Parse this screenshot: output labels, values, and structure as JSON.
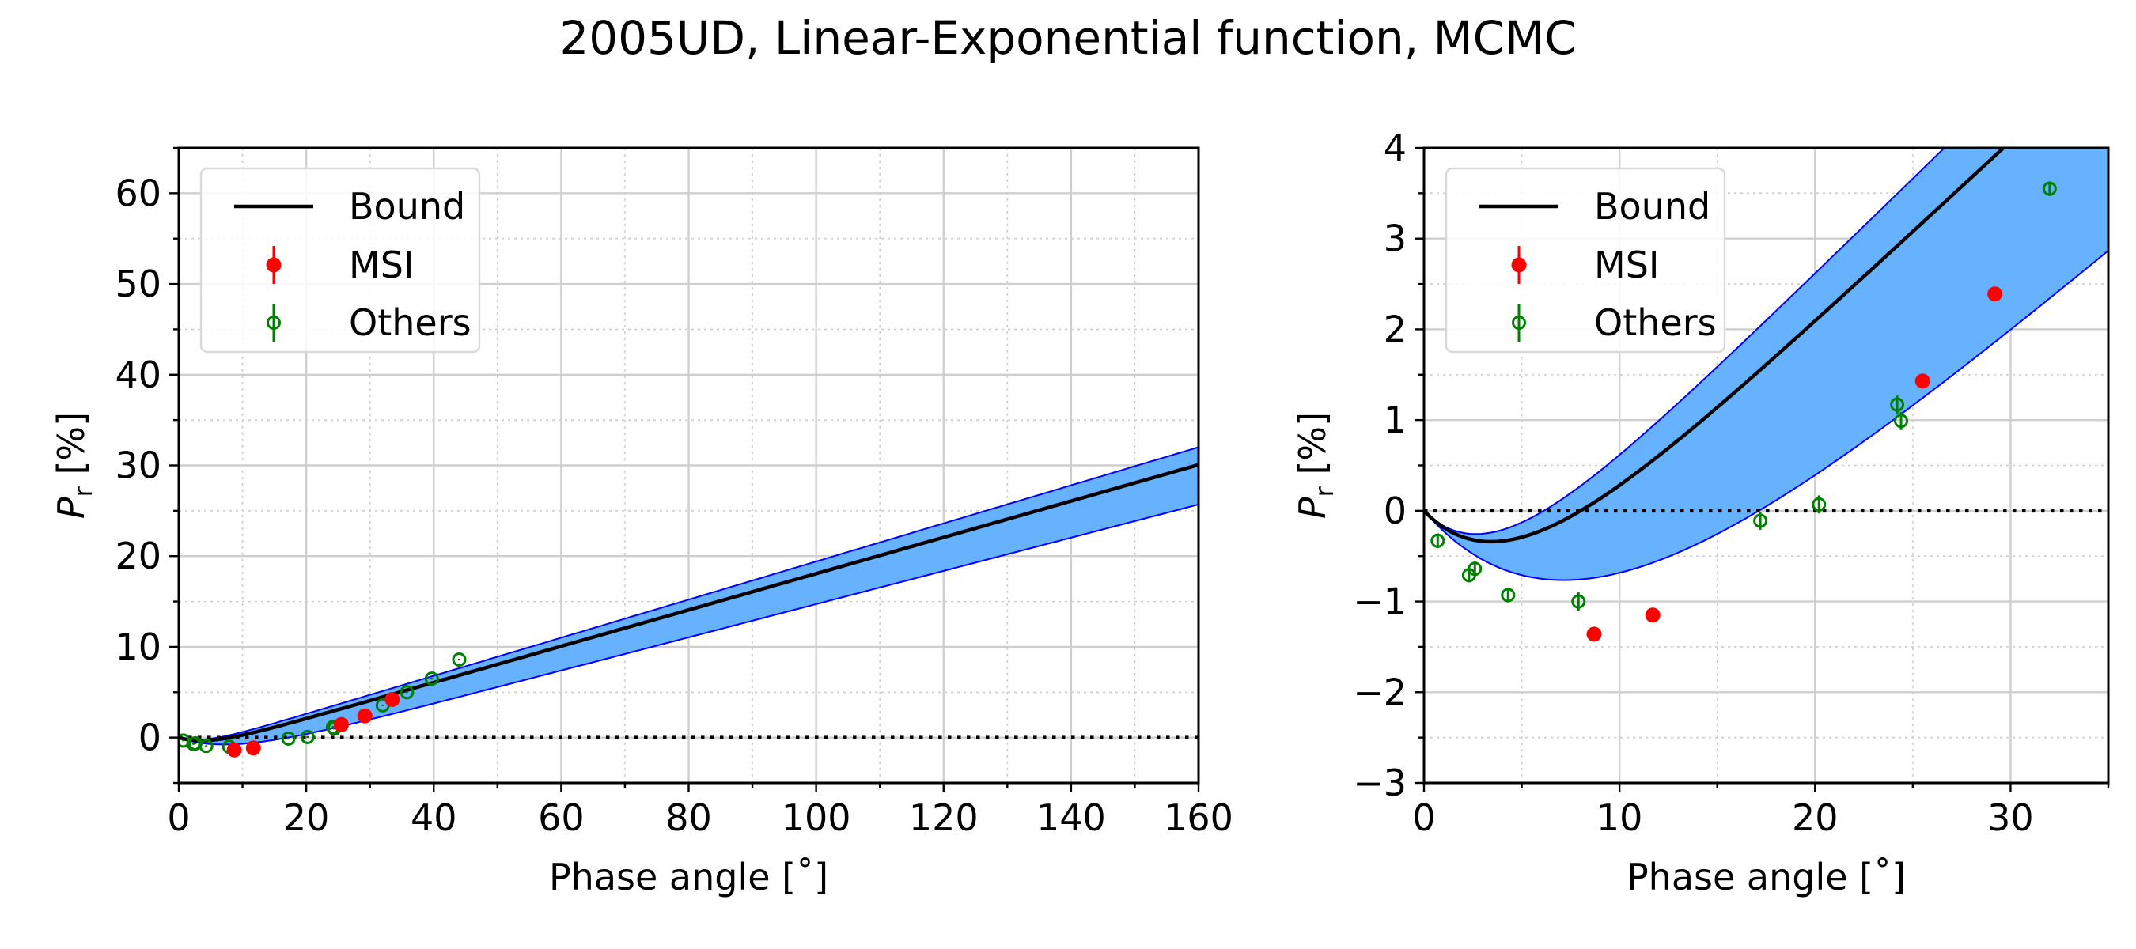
{
  "figure": {
    "title": "2005UD, Linear-Exponential function, MCMC"
  },
  "colors": {
    "band_fill": "#66b2ff",
    "band_edge": "#0000ff",
    "model_line": "#000000",
    "msi": "#ff0000",
    "others": "#008000",
    "zero_line": "#000000"
  },
  "chart_data": [
    {
      "type": "line",
      "title": "",
      "xlabel": "Phase angle [˚]",
      "ylabel": "P_r [%]",
      "ylabel_main": "P",
      "ylabel_sub": "r",
      "ylabel_unit": "[%]",
      "xlim": [
        0,
        160
      ],
      "ylim": [
        -5,
        65
      ],
      "xticks": [
        0,
        20,
        40,
        60,
        80,
        100,
        120,
        140,
        160
      ],
      "yticks": [
        0,
        10,
        20,
        30,
        40,
        50,
        60
      ],
      "x_minor_step": 10,
      "y_minor_step": 5,
      "grid": true,
      "legend_position": "upper-left",
      "legend": [
        "Bound",
        "MSI",
        "Others"
      ],
      "model": {
        "h": 0.2,
        "a": 1.93,
        "k": 4.52
      },
      "band_low": {
        "h": 0.183,
        "a": 3.59,
        "k": 8.3
      },
      "band_high": {
        "h": 0.21,
        "a": 1.59,
        "k": 3.7
      },
      "zero_line": 0,
      "msi": [
        {
          "x": 8.7,
          "y": -1.36,
          "err": 0.08
        },
        {
          "x": 11.7,
          "y": -1.15,
          "err": 0.08
        },
        {
          "x": 25.5,
          "y": 1.43,
          "err": 0.08
        },
        {
          "x": 29.2,
          "y": 2.39,
          "err": 0.08
        },
        {
          "x": 33.5,
          "y": 4.2,
          "err": 0.1
        }
      ],
      "others": [
        {
          "x": 0.7,
          "y": -0.33,
          "err": 0.08
        },
        {
          "x": 2.3,
          "y": -0.71,
          "err": 0.08
        },
        {
          "x": 2.6,
          "y": -0.64,
          "err": 0.08
        },
        {
          "x": 4.3,
          "y": -0.93,
          "err": 0.08
        },
        {
          "x": 7.9,
          "y": -1.0,
          "err": 0.1
        },
        {
          "x": 17.2,
          "y": -0.11,
          "err": 0.1
        },
        {
          "x": 20.2,
          "y": 0.07,
          "err": 0.1
        },
        {
          "x": 24.2,
          "y": 1.17,
          "err": 0.1
        },
        {
          "x": 24.4,
          "y": 0.99,
          "err": 0.1
        },
        {
          "x": 32.0,
          "y": 3.55,
          "err": 0.08
        },
        {
          "x": 35.8,
          "y": 5.0,
          "err": 0.1
        },
        {
          "x": 39.7,
          "y": 6.5,
          "err": 0.1
        },
        {
          "x": 44.0,
          "y": 8.6,
          "err": 0.1
        }
      ]
    },
    {
      "type": "line",
      "title": "",
      "xlabel": "Phase angle [˚]",
      "ylabel": "P_r [%]",
      "ylabel_main": "P",
      "ylabel_sub": "r",
      "ylabel_unit": "[%]",
      "xlim": [
        0,
        35
      ],
      "ylim": [
        -3,
        4
      ],
      "xticks": [
        0,
        10,
        20,
        30
      ],
      "yticks": [
        -3,
        -2,
        -1,
        0,
        1,
        2,
        3,
        4
      ],
      "x_minor_step": 5,
      "y_minor_step": 0.5,
      "grid": true,
      "legend_position": "upper-left",
      "legend": [
        "Bound",
        "MSI",
        "Others"
      ],
      "model": {
        "h": 0.2,
        "a": 1.93,
        "k": 4.52
      },
      "band_low": {
        "h": 0.183,
        "a": 3.59,
        "k": 8.3
      },
      "band_high": {
        "h": 0.21,
        "a": 1.59,
        "k": 3.7
      },
      "zero_line": 0,
      "msi": [
        {
          "x": 8.7,
          "y": -1.36,
          "err": 0.08
        },
        {
          "x": 11.7,
          "y": -1.15,
          "err": 0.08
        },
        {
          "x": 25.5,
          "y": 1.43,
          "err": 0.08
        },
        {
          "x": 29.2,
          "y": 2.39,
          "err": 0.08
        },
        {
          "x": 33.5,
          "y": 4.2,
          "err": 0.1
        }
      ],
      "others": [
        {
          "x": 0.7,
          "y": -0.33,
          "err": 0.08
        },
        {
          "x": 2.3,
          "y": -0.71,
          "err": 0.08
        },
        {
          "x": 2.6,
          "y": -0.64,
          "err": 0.08
        },
        {
          "x": 4.3,
          "y": -0.93,
          "err": 0.08
        },
        {
          "x": 7.9,
          "y": -1.0,
          "err": 0.1
        },
        {
          "x": 17.2,
          "y": -0.11,
          "err": 0.1
        },
        {
          "x": 20.2,
          "y": 0.07,
          "err": 0.1
        },
        {
          "x": 24.2,
          "y": 1.17,
          "err": 0.1
        },
        {
          "x": 24.4,
          "y": 0.99,
          "err": 0.1
        },
        {
          "x": 32.0,
          "y": 3.55,
          "err": 0.08
        },
        {
          "x": 35.8,
          "y": 5.0,
          "err": 0.1
        },
        {
          "x": 39.7,
          "y": 6.5,
          "err": 0.1
        },
        {
          "x": 44.0,
          "y": 8.6,
          "err": 0.1
        }
      ]
    }
  ]
}
